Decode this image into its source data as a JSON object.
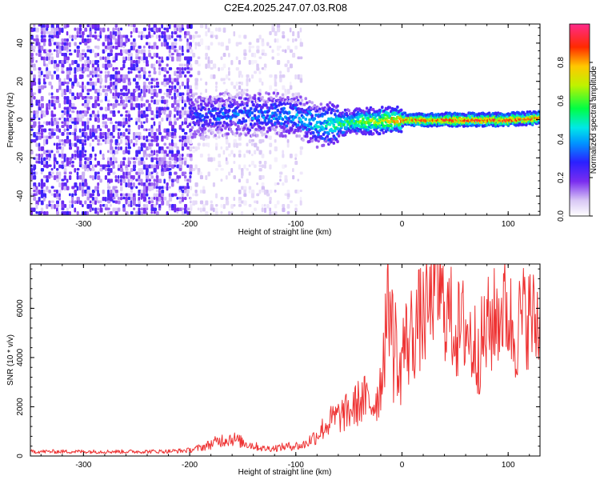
{
  "chart_data": [
    {
      "type": "heatmap",
      "title": "C2E4.2025.247.07.03.R08",
      "xlabel": "Height of straight line (km)",
      "ylabel": "Frequency (Hz)",
      "xlim": [
        -350,
        130
      ],
      "ylim": [
        -50,
        50
      ],
      "x_ticks": [
        -300,
        -200,
        -100,
        0,
        100
      ],
      "y_ticks": [
        -40,
        -20,
        0,
        20,
        40
      ],
      "colorbar": {
        "label": "Normalized spectral amplitude",
        "range": [
          0,
          1
        ],
        "ticks": [
          0.0,
          0.2,
          0.4,
          0.6,
          0.8
        ]
      },
      "description_series": [
        {
          "name": "noise floor band",
          "x_range": [
            -350,
            -200
          ],
          "y_range": [
            -50,
            50
          ],
          "amplitude": 0.15
        },
        {
          "name": "scattered noise",
          "x_range": [
            -200,
            -95
          ],
          "y_range": [
            -50,
            50
          ],
          "amplitude": 0.05
        },
        {
          "name": "carrier trace",
          "x": [
            -200,
            -150,
            -100,
            -80,
            -60,
            -40,
            -20,
            0,
            50,
            100,
            130
          ],
          "y": [
            2,
            3,
            2,
            -3,
            -2,
            -1,
            -0.5,
            0,
            0,
            0,
            1
          ],
          "amplitude": [
            0.3,
            0.35,
            0.4,
            0.45,
            0.55,
            0.6,
            0.7,
            0.85,
            0.9,
            0.9,
            0.85
          ]
        }
      ]
    },
    {
      "type": "line",
      "title": "",
      "xlabel": "Height of straight line (km)",
      "ylabel": "SNR (10 * v/v)",
      "xlim": [
        -350,
        130
      ],
      "ylim": [
        0,
        7800
      ],
      "x_ticks": [
        -300,
        -200,
        -100,
        0,
        100
      ],
      "y_ticks": [
        0,
        2000,
        4000,
        6000
      ],
      "color": "#ee3333",
      "series": [
        {
          "name": "SNR",
          "x": [
            -350,
            -300,
            -250,
            -220,
            -200,
            -185,
            -170,
            -160,
            -150,
            -140,
            -130,
            -120,
            -110,
            -100,
            -95,
            -90,
            -85,
            -80,
            -75,
            -70,
            -65,
            -60,
            -55,
            -50,
            -45,
            -40,
            -35,
            -30,
            -25,
            -20,
            -15,
            -12,
            -10,
            -8,
            -5,
            -3,
            0,
            5,
            10,
            15,
            20,
            25,
            30,
            35,
            40,
            45,
            50,
            55,
            60,
            65,
            70,
            75,
            80,
            85,
            90,
            95,
            100,
            105,
            110,
            115,
            120,
            125,
            130
          ],
          "y": [
            180,
            180,
            180,
            190,
            230,
            400,
            650,
            720,
            550,
            420,
            300,
            320,
            380,
            420,
            400,
            520,
            700,
            850,
            1100,
            1300,
            1500,
            1600,
            1700,
            1800,
            2000,
            2200,
            2300,
            2100,
            2200,
            2900,
            5600,
            6000,
            6500,
            3800,
            5100,
            2500,
            4400,
            4600,
            5000,
            5500,
            5600,
            5900,
            6800,
            6600,
            6000,
            5700,
            5200,
            5000,
            5400,
            4600,
            4400,
            4500,
            5100,
            5400,
            5700,
            6000,
            5800,
            5000,
            5300,
            5700,
            5700,
            5400,
            5400
          ]
        }
      ]
    }
  ]
}
